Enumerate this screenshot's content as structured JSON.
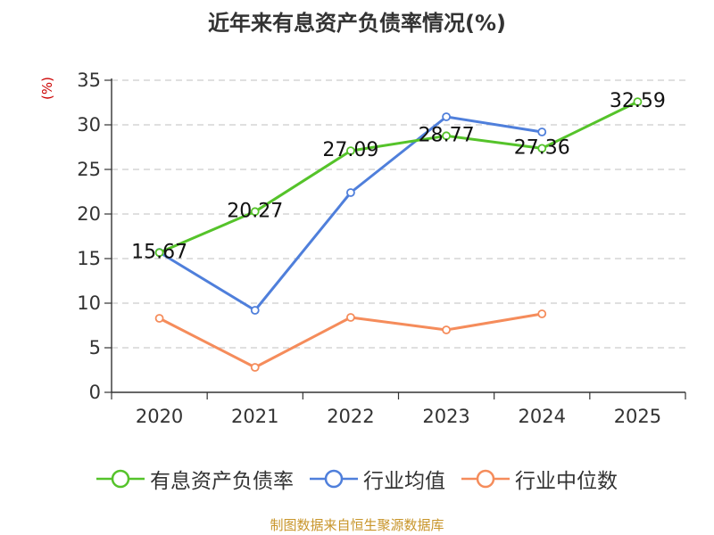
{
  "chart_data": {
    "type": "line",
    "title": "近年来有息资产负债率情况(%)",
    "unit_label": "(%)",
    "categories": [
      "2020",
      "2021",
      "2022",
      "2023",
      "2024",
      "2025"
    ],
    "ylim": [
      0,
      35
    ],
    "yticks": [
      0,
      5,
      10,
      15,
      20,
      25,
      30,
      35
    ],
    "grid": true,
    "legend_position": "bottom",
    "series": [
      {
        "name": "有息资产负债率",
        "color": "#55c32a",
        "values": [
          15.67,
          20.27,
          27.09,
          28.77,
          27.36,
          32.59
        ],
        "show_labels": true
      },
      {
        "name": "行业均值",
        "color": "#4f7fdb",
        "values": [
          15.7,
          9.2,
          22.4,
          30.9,
          29.2,
          null
        ],
        "show_labels": false
      },
      {
        "name": "行业中位数",
        "color": "#f58c5b",
        "values": [
          8.3,
          2.8,
          8.4,
          7.0,
          8.8,
          null
        ],
        "show_labels": false
      }
    ],
    "source": "制图数据来自恒生聚源数据库"
  }
}
